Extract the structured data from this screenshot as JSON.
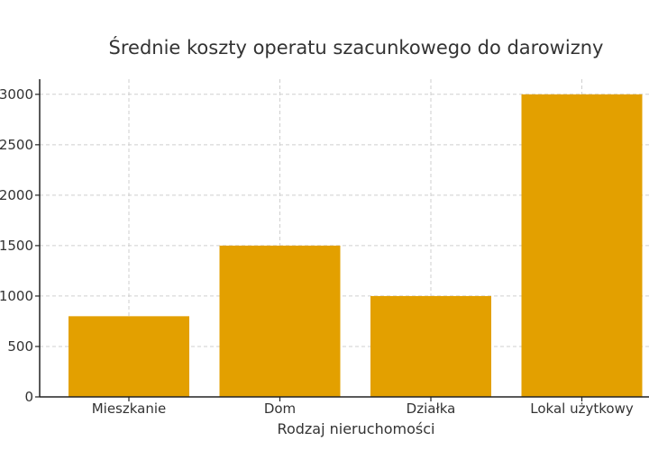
{
  "chart_data": {
    "type": "bar",
    "title": "Średnie koszty operatu szacunkowego do darowizny",
    "xlabel": "Rodzaj nieruchomości",
    "ylabel": "",
    "categories": [
      "Mieszkanie",
      "Dom",
      "Działka",
      "Lokal użytkowy"
    ],
    "values": [
      800,
      1500,
      1000,
      3000
    ],
    "ylim": [
      0,
      3150
    ],
    "yticks": [
      0,
      500,
      1000,
      1500,
      2000,
      2500,
      3000
    ],
    "ytick_labels": [
      "0",
      "500",
      "1000",
      "1500",
      "2000",
      "2500",
      "3000"
    ],
    "grid": true,
    "bar_color": "#E3A000"
  }
}
